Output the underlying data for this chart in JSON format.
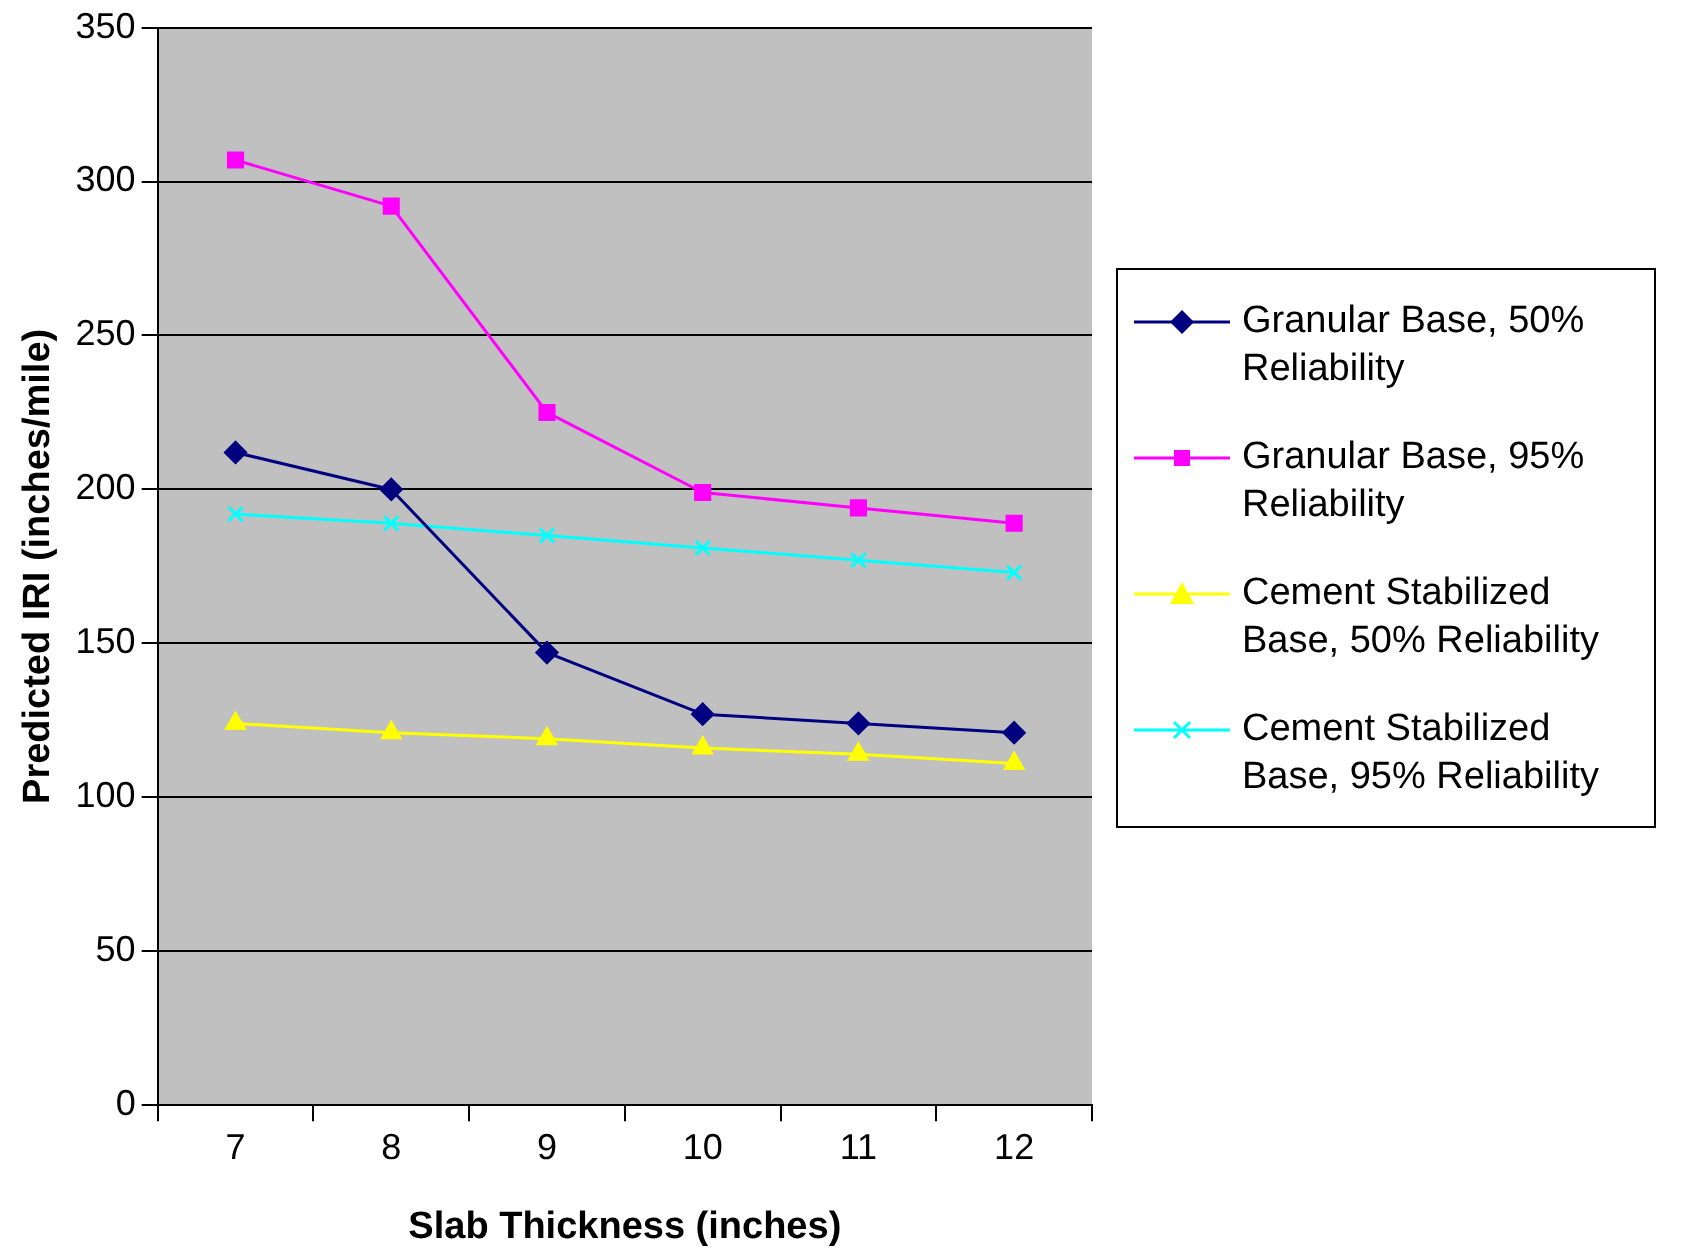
{
  "chart_data": {
    "type": "line",
    "xlabel": "Slab Thickness (inches)",
    "ylabel": "Predicted IRI (inches/mile)",
    "categories": [
      "7",
      "8",
      "9",
      "10",
      "11",
      "12"
    ],
    "ylim": [
      0,
      350
    ],
    "yticks": [
      0,
      50,
      100,
      150,
      200,
      250,
      300,
      350
    ],
    "grid": "y",
    "legend": "right",
    "series": [
      {
        "name": "Granular Base, 50% Reliability",
        "color": "#000080",
        "marker": "diamond",
        "values": [
          212,
          200,
          147,
          127,
          124,
          121
        ]
      },
      {
        "name": "Granular Base, 95% Reliability",
        "color": "#ff00ff",
        "marker": "square",
        "values": [
          307,
          292,
          225,
          199,
          194,
          189
        ]
      },
      {
        "name": "Cement Stabilized Base, 50% Reliability",
        "color": "#ffff00",
        "marker": "triangle",
        "values": [
          124,
          121,
          119,
          116,
          114,
          111
        ]
      },
      {
        "name": "Cement Stabilized Base, 95% Reliability",
        "color": "#00ffff",
        "marker": "cross",
        "values": [
          192,
          189,
          185,
          181,
          177,
          173
        ]
      }
    ]
  }
}
